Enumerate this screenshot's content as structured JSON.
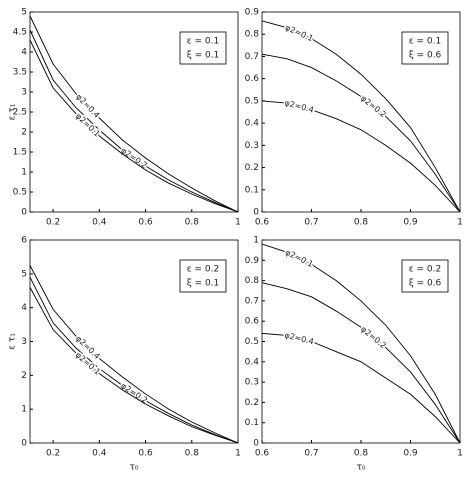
{
  "chart_data": [
    {
      "type": "line",
      "ylabel": "ε τ₁",
      "x": [
        0.1,
        0.2,
        0.3,
        0.4,
        0.5,
        0.6,
        0.7,
        0.8,
        0.9,
        1.0
      ],
      "xlim": [
        0.1,
        1
      ],
      "xticks": [
        0.2,
        0.4,
        0.6,
        0.8,
        1
      ],
      "ylim": [
        0,
        5
      ],
      "yticks": [
        0,
        0.5,
        1,
        1.5,
        2,
        2.5,
        3,
        3.5,
        4,
        4.5,
        5
      ],
      "annotations": [
        "ε = 0.1",
        "ξ = 0.1"
      ],
      "series": [
        {
          "name": "φ2=0.4",
          "color": "#000",
          "values": [
            4.9,
            3.7,
            2.95,
            2.35,
            1.8,
            1.35,
            0.95,
            0.6,
            0.28,
            0
          ]
        },
        {
          "name": "φ2=0.2",
          "color": "#000",
          "values": [
            4.55,
            3.3,
            2.6,
            2.05,
            1.55,
            1.15,
            0.8,
            0.5,
            0.24,
            0
          ]
        },
        {
          "name": "φ2=0.1",
          "color": "#000",
          "values": [
            4.3,
            3.1,
            2.45,
            1.9,
            1.45,
            1.05,
            0.72,
            0.45,
            0.21,
            0
          ]
        }
      ]
    },
    {
      "type": "line",
      "x": [
        0.6,
        0.65,
        0.7,
        0.75,
        0.8,
        0.85,
        0.9,
        0.95,
        1.0
      ],
      "xlim": [
        0.6,
        1
      ],
      "xticks": [
        0.6,
        0.7,
        0.8,
        0.9,
        1
      ],
      "ylim": [
        0,
        0.9
      ],
      "yticks": [
        0,
        0.1,
        0.2,
        0.3,
        0.4,
        0.5,
        0.6,
        0.7,
        0.8,
        0.9
      ],
      "annotations": [
        "ε = 0.1",
        "ξ = 0.6"
      ],
      "series": [
        {
          "name": "φ2=0.1",
          "color": "#000",
          "values": [
            0.86,
            0.83,
            0.78,
            0.71,
            0.62,
            0.51,
            0.38,
            0.2,
            0
          ]
        },
        {
          "name": "φ2=0.2",
          "color": "#000",
          "values": [
            0.71,
            0.69,
            0.65,
            0.59,
            0.52,
            0.43,
            0.32,
            0.17,
            0
          ]
        },
        {
          "name": "φ2=0.4",
          "color": "#000",
          "values": [
            0.5,
            0.49,
            0.46,
            0.42,
            0.37,
            0.3,
            0.22,
            0.12,
            0
          ]
        }
      ]
    },
    {
      "type": "line",
      "ylabel": "ε τ₁",
      "xlabel": "τ₀",
      "x": [
        0.1,
        0.2,
        0.3,
        0.4,
        0.5,
        0.6,
        0.7,
        0.8,
        0.9,
        1.0
      ],
      "xlim": [
        0.1,
        1
      ],
      "xticks": [
        0.2,
        0.4,
        0.6,
        0.8,
        1
      ],
      "ylim": [
        0,
        6
      ],
      "yticks": [
        0,
        1,
        2,
        3,
        4,
        5,
        6
      ],
      "annotations": [
        "ε = 0.2",
        "ξ = 0.1"
      ],
      "series": [
        {
          "name": "φ2=0.4",
          "color": "#000",
          "values": [
            5.25,
            3.95,
            3.15,
            2.5,
            1.95,
            1.45,
            1.0,
            0.62,
            0.3,
            0
          ]
        },
        {
          "name": "φ2=0.2",
          "color": "#000",
          "values": [
            4.9,
            3.55,
            2.8,
            2.2,
            1.7,
            1.25,
            0.87,
            0.53,
            0.25,
            0
          ]
        },
        {
          "name": "φ2=0.1",
          "color": "#000",
          "values": [
            4.6,
            3.35,
            2.65,
            2.05,
            1.57,
            1.15,
            0.8,
            0.48,
            0.23,
            0
          ]
        }
      ]
    },
    {
      "type": "line",
      "xlabel": "τ₀",
      "x": [
        0.6,
        0.65,
        0.7,
        0.75,
        0.8,
        0.85,
        0.9,
        0.95,
        1.0
      ],
      "xlim": [
        0.6,
        1
      ],
      "xticks": [
        0.6,
        0.7,
        0.8,
        0.9,
        1
      ],
      "ylim": [
        0,
        1
      ],
      "yticks": [
        0,
        0.1,
        0.2,
        0.3,
        0.4,
        0.5,
        0.6,
        0.7,
        0.8,
        0.9,
        1
      ],
      "annotations": [
        "ε = 0.2",
        "ξ = 0.6"
      ],
      "series": [
        {
          "name": "φ2=0.1",
          "color": "#000",
          "values": [
            0.98,
            0.94,
            0.88,
            0.8,
            0.7,
            0.58,
            0.43,
            0.24,
            0
          ]
        },
        {
          "name": "φ2=0.2",
          "color": "#000",
          "values": [
            0.79,
            0.76,
            0.72,
            0.65,
            0.57,
            0.47,
            0.35,
            0.19,
            0
          ]
        },
        {
          "name": "φ2=0.4",
          "color": "#000",
          "values": [
            0.54,
            0.53,
            0.5,
            0.45,
            0.4,
            0.32,
            0.24,
            0.13,
            0
          ]
        }
      ]
    }
  ]
}
